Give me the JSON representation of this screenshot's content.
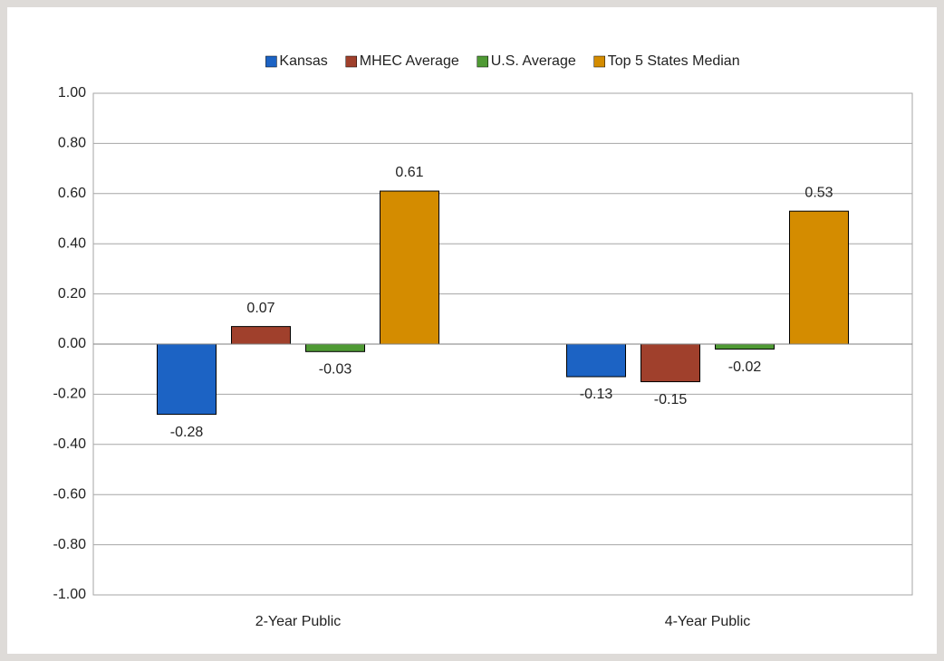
{
  "chart_data": {
    "type": "bar",
    "categories": [
      "2-Year Public",
      "4-Year Public"
    ],
    "series": [
      {
        "name": "Kansas",
        "color": "#1c63c4",
        "values": [
          -0.28,
          -0.13
        ]
      },
      {
        "name": "MHEC Average",
        "color": "#a0402c",
        "values": [
          0.07,
          -0.15
        ]
      },
      {
        "name": "U.S. Average",
        "color": "#4f9a34",
        "values": [
          -0.03,
          -0.02
        ]
      },
      {
        "name": "Top 5 States Median",
        "color": "#d48c00",
        "values": [
          0.61,
          0.53
        ]
      }
    ],
    "ylim": [
      -1,
      1
    ],
    "yticks": [
      {
        "value": -1,
        "label": "-1.00"
      },
      {
        "value": -0.8,
        "label": "-0.80"
      },
      {
        "value": -0.6,
        "label": "-0.60"
      },
      {
        "value": -0.4,
        "label": "-0.40"
      },
      {
        "value": -0.2,
        "label": "-0.20"
      },
      {
        "value": 0,
        "label": "0.00"
      },
      {
        "value": 0.2,
        "label": "0.20"
      },
      {
        "value": 0.4,
        "label": "0.40"
      },
      {
        "value": 0.6,
        "label": "0.60"
      },
      {
        "value": 0.8,
        "label": "0.80"
      },
      {
        "value": 1,
        "label": "1.00"
      }
    ],
    "grid": true,
    "legend": "top"
  }
}
